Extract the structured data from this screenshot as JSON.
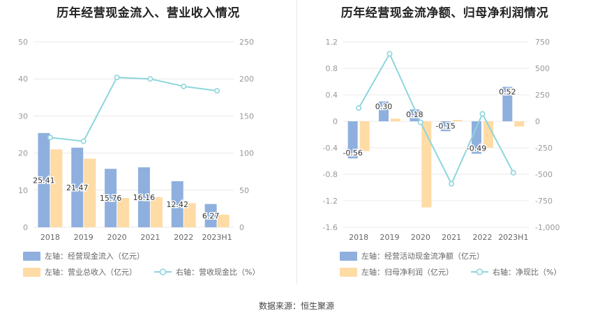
{
  "titles": {
    "left": "历年经营现金流入、营业收入情况",
    "right": "历年经营现金流净额、归母净利润情况"
  },
  "source": "数据来源：恒生聚源",
  "colors": {
    "blue": "#8fb0de",
    "orange": "#ffdba5",
    "line": "#8dd6dc",
    "grid": "#e8e8e8"
  },
  "chart_data": [
    {
      "type": "bar",
      "categories": [
        "2018",
        "2019",
        "2020",
        "2021",
        "2022",
        "2023H1"
      ],
      "series": [
        {
          "name": "左轴：经营现金流入（亿元）",
          "kind": "bar",
          "axis": "left",
          "values": [
            25.41,
            21.47,
            15.76,
            16.16,
            12.42,
            6.27
          ],
          "labels": [
            "25.41",
            "21.47",
            "15.76",
            "16.16",
            "12.42",
            "6.27"
          ]
        },
        {
          "name": "左轴：营业总收入（亿元）",
          "kind": "bar",
          "axis": "left",
          "values": [
            21.0,
            18.5,
            7.9,
            8.1,
            6.5,
            3.4
          ]
        },
        {
          "name": "右轴：营收现金比（%）",
          "kind": "line",
          "axis": "right",
          "values": [
            121,
            116,
            202,
            200,
            190,
            184
          ]
        }
      ],
      "yleft": {
        "min": 0,
        "max": 50,
        "ticks": [
          "0",
          "10",
          "20",
          "30",
          "40",
          "50"
        ]
      },
      "yright": {
        "min": 0,
        "max": 250,
        "ticks": [
          "0",
          "50",
          "100",
          "150",
          "200",
          "250"
        ]
      },
      "grid": true,
      "legend": "bottom"
    },
    {
      "type": "bar",
      "categories": [
        "2018",
        "2019",
        "2020",
        "2021",
        "2022",
        "2023H1"
      ],
      "series": [
        {
          "name": "左轴：经营活动现金流净额（亿元）",
          "kind": "bar",
          "axis": "left",
          "values": [
            -0.56,
            0.3,
            0.18,
            -0.15,
            -0.49,
            0.52
          ],
          "labels": [
            "-0.56",
            "0.30",
            "0.18",
            "-0.15",
            "-0.49",
            "0.52"
          ]
        },
        {
          "name": "左轴：归母净利润（亿元）",
          "kind": "bar",
          "axis": "left",
          "values": [
            -0.45,
            0.04,
            -1.3,
            0.02,
            -0.4,
            -0.08
          ]
        },
        {
          "name": "右轴：净现比（%）",
          "kind": "line",
          "axis": "right",
          "values": [
            125,
            637,
            -10,
            -590,
            70,
            -485
          ]
        }
      ],
      "yleft": {
        "min": -1.6,
        "max": 1.2,
        "ticks": [
          "1.2",
          "0.8",
          "0.4",
          "0",
          "-0.4",
          "-0.8",
          "-1.2",
          "-1.6"
        ]
      },
      "yright": {
        "min": -1000,
        "max": 750,
        "ticks": [
          "750",
          "500",
          "250",
          "0",
          "-250",
          "-500",
          "-750",
          "-1,000"
        ]
      },
      "grid": true,
      "legend": "bottom"
    }
  ]
}
